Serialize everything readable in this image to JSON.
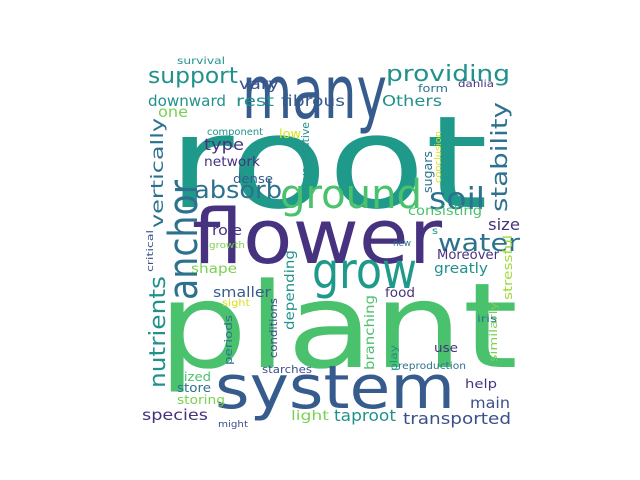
{
  "word_cloud": {
    "palette": {
      "purple": "#46327e",
      "indigo": "#3b4f8a",
      "blue": "#365c8d",
      "teal_blue": "#2c728e",
      "teal": "#1f9a8a",
      "green_teal": "#21918c",
      "green": "#4ac16d",
      "lime": "#7ad151",
      "yellow_green": "#a0da39",
      "yellow": "#d8e219"
    },
    "words": [
      {
        "text": "root",
        "color": "#1f9a8a"
      },
      {
        "text": "plant",
        "color": "#4ac16d"
      },
      {
        "text": "flower",
        "color": "#46327e"
      },
      {
        "text": "system",
        "color": "#365c8d"
      },
      {
        "text": "many",
        "color": "#365c8d"
      },
      {
        "text": "grow",
        "color": "#1f9a8a"
      },
      {
        "text": "ground",
        "color": "#4ac16d"
      },
      {
        "text": "anchor",
        "color": "#2c728e"
      },
      {
        "text": "soil",
        "color": "#2c728e"
      },
      {
        "text": "absorb",
        "color": "#2c728e"
      },
      {
        "text": "water",
        "color": "#2c728e"
      },
      {
        "text": "support",
        "color": "#21918c"
      },
      {
        "text": "providing",
        "color": "#21918c"
      },
      {
        "text": "stability",
        "color": "#2c728e"
      },
      {
        "text": "nutrients",
        "color": "#21918c"
      },
      {
        "text": "vertically",
        "color": "#2c728e"
      },
      {
        "text": "downward",
        "color": "#21918c"
      },
      {
        "text": "fibrous",
        "color": "#365c8d"
      },
      {
        "text": "Others",
        "color": "#21918c"
      },
      {
        "text": "rest",
        "color": "#21918c"
      },
      {
        "text": "vary",
        "color": "#3b4f8a"
      },
      {
        "text": "one",
        "color": "#7ad151"
      },
      {
        "text": "type",
        "color": "#46327e"
      },
      {
        "text": "network",
        "color": "#46327e"
      },
      {
        "text": "component",
        "color": "#21918c"
      },
      {
        "text": "low",
        "color": "#d8e219"
      },
      {
        "text": "vegetative",
        "color": "#21918c"
      },
      {
        "text": "sugars",
        "color": "#2c728e"
      },
      {
        "text": "conclusion",
        "color": "#d8e219"
      },
      {
        "text": "dense",
        "color": "#365c8d"
      },
      {
        "text": "consisting",
        "color": "#4ac16d"
      },
      {
        "text": "size",
        "color": "#46327e"
      },
      {
        "text": "role",
        "color": "#46327e"
      },
      {
        "text": "critical",
        "color": "#3b4f8a"
      },
      {
        "text": "growth",
        "color": "#7ad151"
      },
      {
        "text": "shape",
        "color": "#7ad151"
      },
      {
        "text": "smaller",
        "color": "#365c8d"
      },
      {
        "text": "depending",
        "color": "#21918c"
      },
      {
        "text": "conditions",
        "color": "#3b4f8a"
      },
      {
        "text": "branching",
        "color": "#4ac16d"
      },
      {
        "text": "Moreover",
        "color": "#46327e"
      },
      {
        "text": "greatly",
        "color": "#21918c"
      },
      {
        "text": "new",
        "color": "#2c728e"
      },
      {
        "text": "s",
        "color": "#21918c"
      },
      {
        "text": "food",
        "color": "#46327e"
      },
      {
        "text": "stressful",
        "color": "#a0da39"
      },
      {
        "text": "similarly",
        "color": "#7ad151"
      },
      {
        "text": "sight",
        "color": "#d8e219"
      },
      {
        "text": "periods",
        "color": "#2c728e"
      },
      {
        "text": "use",
        "color": "#46327e"
      },
      {
        "text": "iris",
        "color": "#2c728e"
      },
      {
        "text": "play",
        "color": "#21918c"
      },
      {
        "text": "reproduction",
        "color": "#2c728e"
      },
      {
        "text": "sized",
        "color": "#4ac16d"
      },
      {
        "text": "store",
        "color": "#2c728e"
      },
      {
        "text": "storing",
        "color": "#7ad151"
      },
      {
        "text": "starches",
        "color": "#3b4f8a"
      },
      {
        "text": "help",
        "color": "#46327e"
      },
      {
        "text": "main",
        "color": "#3b4f8a"
      },
      {
        "text": "species",
        "color": "#46327e"
      },
      {
        "text": "light",
        "color": "#7ad151"
      },
      {
        "text": "taproot",
        "color": "#21918c"
      },
      {
        "text": "transported",
        "color": "#3b4f8a"
      },
      {
        "text": "might",
        "color": "#3b4f8a"
      },
      {
        "text": "survival",
        "color": "#21918c"
      },
      {
        "text": "form",
        "color": "#2c728e"
      },
      {
        "text": "dahlia",
        "color": "#46327e"
      }
    ]
  }
}
